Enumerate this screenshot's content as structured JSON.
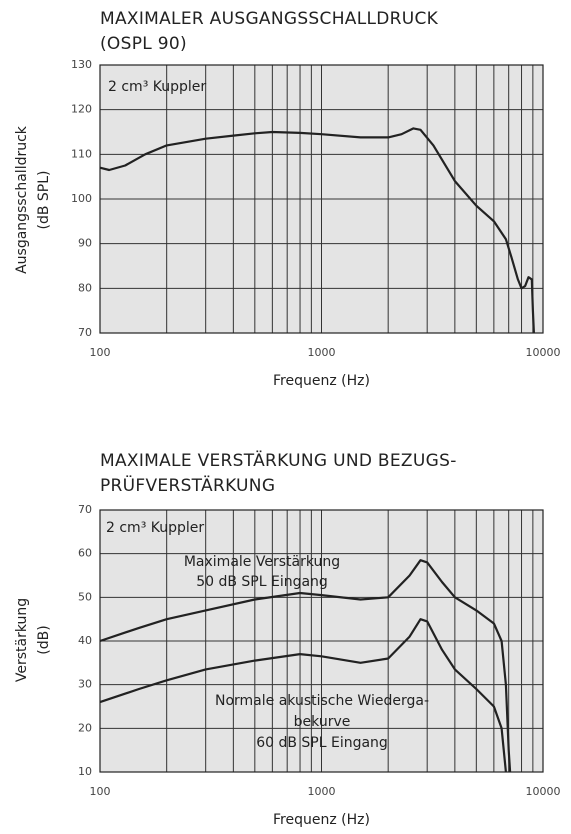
{
  "chart_data": [
    {
      "type": "line",
      "title": [
        "MAXIMALER AUSGANGSSCHALLDRUCK",
        "(OSPL 90)"
      ],
      "ylabel": [
        "Ausgangsschalldruck",
        "(dB SPL)"
      ],
      "xlabel": "Frequenz (Hz)",
      "annotations": [
        [
          "2 cm³ Kuppler"
        ]
      ],
      "xscale": "log",
      "xlim": [
        100,
        10000
      ],
      "xticks": [
        100,
        1000,
        10000
      ],
      "xgrid": [
        200,
        300,
        400,
        500,
        600,
        700,
        800,
        900,
        2000,
        3000,
        4000,
        5000,
        6000,
        7000,
        8000,
        9000
      ],
      "ylim": [
        70,
        130
      ],
      "yticks": [
        70,
        80,
        90,
        100,
        110,
        120,
        130
      ],
      "grid": true,
      "series": [
        {
          "color": "#222222",
          "x": [
            100,
            110,
            130,
            160,
            200,
            300,
            400,
            500,
            600,
            800,
            1000,
            1500,
            2000,
            2300,
            2600,
            2800,
            3200,
            4000,
            5000,
            6000,
            6800,
            7200,
            7700,
            8000,
            8300,
            8600,
            8900,
            9000,
            9100
          ],
          "values": [
            107,
            106.5,
            107.5,
            110,
            112,
            113.5,
            114.2,
            114.7,
            115,
            114.8,
            114.5,
            113.8,
            113.8,
            114.5,
            115.8,
            115.5,
            112,
            104,
            98.5,
            95,
            91,
            87,
            82,
            80,
            80.5,
            82.5,
            82,
            75,
            70
          ]
        }
      ]
    },
    {
      "type": "line",
      "title": [
        "MAXIMALE VERSTÄRKUNG UND BEZUGS-",
        "PRÜFVERSTÄRKUNG"
      ],
      "ylabel": [
        "Verstärkung",
        "(dB)"
      ],
      "xlabel": "Frequenz (Hz)",
      "annotations": [
        [
          "2 cm³ Kuppler"
        ],
        [
          "Maximale Verstärkung",
          "50 dB SPL Eingang"
        ],
        [
          "Normale akustische Wiederga-",
          "bekurve",
          "60 dB SPL Eingang"
        ]
      ],
      "xscale": "log",
      "xlim": [
        100,
        10000
      ],
      "xticks": [
        100,
        1000,
        10000
      ],
      "xgrid": [
        200,
        300,
        400,
        500,
        600,
        700,
        800,
        900,
        2000,
        3000,
        4000,
        5000,
        6000,
        7000,
        8000,
        9000
      ],
      "ylim": [
        10,
        70
      ],
      "yticks": [
        10,
        20,
        30,
        40,
        50,
        60,
        70
      ],
      "grid": true,
      "series": [
        {
          "color": "#222222",
          "x": [
            100,
            150,
            200,
            300,
            500,
            800,
            1000,
            1500,
            2000,
            2500,
            2800,
            3000,
            3500,
            4000,
            5000,
            6000,
            6500,
            6800,
            7000,
            7100
          ],
          "values": [
            40,
            43,
            45,
            47,
            49.5,
            51,
            50.5,
            49.5,
            50,
            55,
            58.5,
            58,
            53.5,
            50,
            47,
            44,
            40,
            30,
            15,
            10
          ]
        },
        {
          "color": "#222222",
          "x": [
            100,
            150,
            200,
            300,
            500,
            800,
            1000,
            1500,
            2000,
            2500,
            2800,
            3000,
            3500,
            4000,
            5000,
            6000,
            6500,
            6800
          ],
          "values": [
            26,
            29,
            31,
            33.5,
            35.5,
            37,
            36.5,
            35,
            36,
            41,
            45,
            44.5,
            38,
            33.5,
            29,
            25,
            20,
            10
          ]
        }
      ]
    }
  ]
}
